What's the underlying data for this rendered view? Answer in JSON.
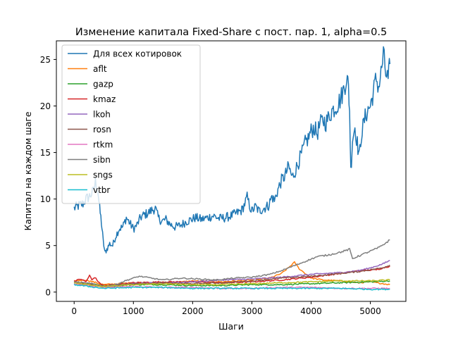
{
  "chart_data": {
    "type": "line",
    "title": "Изменение капитала Fixed-Share с пост. пар. 1, alpha=0.5",
    "xlabel": "Шаги",
    "ylabel": "Капитал на каждом шаге",
    "xlim": [
      -300,
      5600
    ],
    "ylim": [
      -1.0,
      27.0
    ],
    "xticks": [
      0,
      1000,
      2000,
      3000,
      4000,
      5000
    ],
    "yticks": [
      0,
      5,
      10,
      15,
      20,
      25
    ],
    "grid": false,
    "legend_position": "upper-left",
    "series": [
      {
        "name": "Для всех котировок",
        "color": "#1f77b4",
        "primary": true,
        "points": [
          [
            0,
            9.0
          ],
          [
            80,
            9.3
          ],
          [
            150,
            9.5
          ],
          [
            200,
            10.0
          ],
          [
            260,
            10.3
          ],
          [
            320,
            10.8
          ],
          [
            360,
            11.8
          ],
          [
            400,
            11.0
          ],
          [
            430,
            9.0
          ],
          [
            460,
            7.5
          ],
          [
            490,
            5.5
          ],
          [
            520,
            4.2
          ],
          [
            550,
            4.6
          ],
          [
            600,
            5.2
          ],
          [
            650,
            5.0
          ],
          [
            700,
            6.0
          ],
          [
            760,
            6.8
          ],
          [
            820,
            7.0
          ],
          [
            880,
            8.0
          ],
          [
            930,
            7.5
          ],
          [
            1000,
            6.8
          ],
          [
            1060,
            7.2
          ],
          [
            1120,
            8.0
          ],
          [
            1180,
            8.3
          ],
          [
            1250,
            8.5
          ],
          [
            1310,
            8.8
          ],
          [
            1370,
            9.0
          ],
          [
            1420,
            8.0
          ],
          [
            1480,
            7.6
          ],
          [
            1550,
            7.8
          ],
          [
            1620,
            7.3
          ],
          [
            1700,
            7.0
          ],
          [
            1800,
            7.2
          ],
          [
            1900,
            7.6
          ],
          [
            1980,
            7.8
          ],
          [
            2050,
            8.0
          ],
          [
            2150,
            7.8
          ],
          [
            2250,
            8.0
          ],
          [
            2350,
            8.2
          ],
          [
            2450,
            7.9
          ],
          [
            2550,
            8.0
          ],
          [
            2650,
            8.2
          ],
          [
            2750,
            8.5
          ],
          [
            2830,
            8.8
          ],
          [
            2880,
            9.5
          ],
          [
            2920,
            10.2
          ],
          [
            2960,
            9.3
          ],
          [
            3000,
            8.7
          ],
          [
            3060,
            9.2
          ],
          [
            3120,
            8.7
          ],
          [
            3200,
            9.0
          ],
          [
            3280,
            9.3
          ],
          [
            3340,
            10.3
          ],
          [
            3380,
            9.8
          ],
          [
            3440,
            11.0
          ],
          [
            3500,
            12.0
          ],
          [
            3560,
            12.5
          ],
          [
            3620,
            13.5
          ],
          [
            3680,
            12.3
          ],
          [
            3730,
            13.0
          ],
          [
            3800,
            14.2
          ],
          [
            3850,
            15.0
          ],
          [
            3900,
            16.0
          ],
          [
            3950,
            16.5
          ],
          [
            4000,
            17.3
          ],
          [
            4050,
            17.7
          ],
          [
            4100,
            17.0
          ],
          [
            4150,
            18.0
          ],
          [
            4200,
            18.5
          ],
          [
            4250,
            18.2
          ],
          [
            4300,
            18.8
          ],
          [
            4350,
            19.5
          ],
          [
            4400,
            19.8
          ],
          [
            4450,
            20.2
          ],
          [
            4500,
            20.8
          ],
          [
            4560,
            22.0
          ],
          [
            4600,
            23.2
          ],
          [
            4630,
            22.0
          ],
          [
            4650,
            19.5
          ],
          [
            4670,
            13.0
          ],
          [
            4700,
            16.5
          ],
          [
            4740,
            17.8
          ],
          [
            4780,
            16.0
          ],
          [
            4810,
            14.5
          ],
          [
            4850,
            17.0
          ],
          [
            4900,
            18.5
          ],
          [
            4950,
            19.5
          ],
          [
            5000,
            20.0
          ],
          [
            5050,
            21.5
          ],
          [
            5100,
            23.0
          ],
          [
            5140,
            22.0
          ],
          [
            5180,
            23.5
          ],
          [
            5220,
            25.5
          ],
          [
            5260,
            23.5
          ],
          [
            5300,
            22.8
          ],
          [
            5330,
            24.5
          ]
        ]
      },
      {
        "name": "aflt",
        "color": "#ff7f0e",
        "points": [
          [
            0,
            1.2
          ],
          [
            200,
            1.3
          ],
          [
            500,
            0.8
          ],
          [
            1000,
            1.0
          ],
          [
            1500,
            0.9
          ],
          [
            2000,
            1.2
          ],
          [
            2500,
            1.1
          ],
          [
            3000,
            1.3
          ],
          [
            3300,
            1.5
          ],
          [
            3500,
            2.0
          ],
          [
            3650,
            2.8
          ],
          [
            3720,
            3.2
          ],
          [
            3800,
            2.5
          ],
          [
            3900,
            2.0
          ],
          [
            4000,
            1.5
          ],
          [
            4200,
            1.3
          ],
          [
            4500,
            1.2
          ],
          [
            4800,
            1.0
          ],
          [
            5000,
            1.1
          ],
          [
            5330,
            0.8
          ]
        ]
      },
      {
        "name": "gazp",
        "color": "#2ca02c",
        "points": [
          [
            0,
            1.0
          ],
          [
            300,
            0.9
          ],
          [
            600,
            0.6
          ],
          [
            1000,
            0.8
          ],
          [
            1500,
            0.8
          ],
          [
            2000,
            0.7
          ],
          [
            2500,
            0.7
          ],
          [
            3000,
            0.8
          ],
          [
            3500,
            0.8
          ],
          [
            4000,
            0.9
          ],
          [
            4500,
            1.0
          ],
          [
            5000,
            1.1
          ],
          [
            5330,
            1.2
          ]
        ]
      },
      {
        "name": "kmaz",
        "color": "#d62728",
        "points": [
          [
            0,
            1.2
          ],
          [
            120,
            1.4
          ],
          [
            200,
            1.1
          ],
          [
            260,
            1.8
          ],
          [
            300,
            1.3
          ],
          [
            350,
            1.6
          ],
          [
            420,
            1.0
          ],
          [
            500,
            0.7
          ],
          [
            700,
            0.8
          ],
          [
            1000,
            1.0
          ],
          [
            1500,
            1.1
          ],
          [
            2000,
            1.1
          ],
          [
            2500,
            1.0
          ],
          [
            3000,
            1.1
          ],
          [
            3500,
            1.3
          ],
          [
            4000,
            1.6
          ],
          [
            4500,
            2.0
          ],
          [
            4800,
            2.3
          ],
          [
            5100,
            2.4
          ],
          [
            5330,
            2.8
          ]
        ]
      },
      {
        "name": "lkoh",
        "color": "#9467bd",
        "points": [
          [
            0,
            1.0
          ],
          [
            500,
            0.6
          ],
          [
            1000,
            0.9
          ],
          [
            1500,
            1.0
          ],
          [
            2000,
            1.1
          ],
          [
            2500,
            1.3
          ],
          [
            3000,
            1.4
          ],
          [
            3500,
            1.6
          ],
          [
            4000,
            1.9
          ],
          [
            4500,
            2.1
          ],
          [
            4800,
            2.3
          ],
          [
            5000,
            2.6
          ],
          [
            5200,
            3.0
          ],
          [
            5330,
            3.4
          ]
        ]
      },
      {
        "name": "rosn",
        "color": "#8c564b",
        "points": [
          [
            0,
            1.0
          ],
          [
            500,
            0.7
          ],
          [
            1000,
            0.9
          ],
          [
            1500,
            1.0
          ],
          [
            2000,
            0.9
          ],
          [
            2500,
            1.0
          ],
          [
            3000,
            1.2
          ],
          [
            3500,
            1.5
          ],
          [
            4000,
            1.7
          ],
          [
            4500,
            2.0
          ],
          [
            4800,
            2.2
          ],
          [
            5000,
            2.4
          ],
          [
            5200,
            2.6
          ],
          [
            5330,
            2.9
          ]
        ]
      },
      {
        "name": "rtkm",
        "color": "#e377c2",
        "points": [
          [
            0,
            0.9
          ],
          [
            500,
            0.5
          ],
          [
            1000,
            0.6
          ],
          [
            1500,
            0.5
          ],
          [
            2000,
            0.5
          ],
          [
            2500,
            0.4
          ],
          [
            3000,
            0.4
          ],
          [
            3500,
            0.5
          ],
          [
            4000,
            0.5
          ],
          [
            4500,
            0.4
          ],
          [
            5000,
            0.4
          ],
          [
            5330,
            0.4
          ]
        ]
      },
      {
        "name": "sibn",
        "color": "#7f7f7f",
        "points": [
          [
            0,
            1.1
          ],
          [
            300,
            0.9
          ],
          [
            500,
            0.6
          ],
          [
            700,
            0.8
          ],
          [
            900,
            1.3
          ],
          [
            1100,
            1.7
          ],
          [
            1300,
            1.5
          ],
          [
            1500,
            1.3
          ],
          [
            1800,
            1.5
          ],
          [
            2100,
            1.4
          ],
          [
            2400,
            1.3
          ],
          [
            2700,
            1.5
          ],
          [
            3000,
            1.6
          ],
          [
            3300,
            1.9
          ],
          [
            3500,
            2.3
          ],
          [
            3700,
            2.8
          ],
          [
            3900,
            3.3
          ],
          [
            4100,
            3.8
          ],
          [
            4300,
            4.0
          ],
          [
            4500,
            4.3
          ],
          [
            4650,
            4.6
          ],
          [
            4700,
            3.6
          ],
          [
            4850,
            4.0
          ],
          [
            5000,
            4.4
          ],
          [
            5150,
            4.8
          ],
          [
            5330,
            5.6
          ]
        ]
      },
      {
        "name": "sngs",
        "color": "#bcbd22",
        "points": [
          [
            0,
            1.0
          ],
          [
            500,
            0.6
          ],
          [
            1000,
            0.8
          ],
          [
            1500,
            0.9
          ],
          [
            2000,
            0.8
          ],
          [
            2500,
            0.8
          ],
          [
            3000,
            0.9
          ],
          [
            3500,
            1.0
          ],
          [
            4000,
            1.1
          ],
          [
            4500,
            1.2
          ],
          [
            5000,
            1.2
          ],
          [
            5330,
            1.3
          ]
        ]
      },
      {
        "name": "vtbr",
        "color": "#17becf",
        "points": [
          [
            0,
            0.8
          ],
          [
            500,
            0.4
          ],
          [
            1000,
            0.5
          ],
          [
            1500,
            0.5
          ],
          [
            2000,
            0.4
          ],
          [
            2500,
            0.4
          ],
          [
            3000,
            0.4
          ],
          [
            3500,
            0.4
          ],
          [
            4000,
            0.4
          ],
          [
            4500,
            0.4
          ],
          [
            5000,
            0.3
          ],
          [
            5330,
            0.3
          ]
        ]
      }
    ]
  }
}
